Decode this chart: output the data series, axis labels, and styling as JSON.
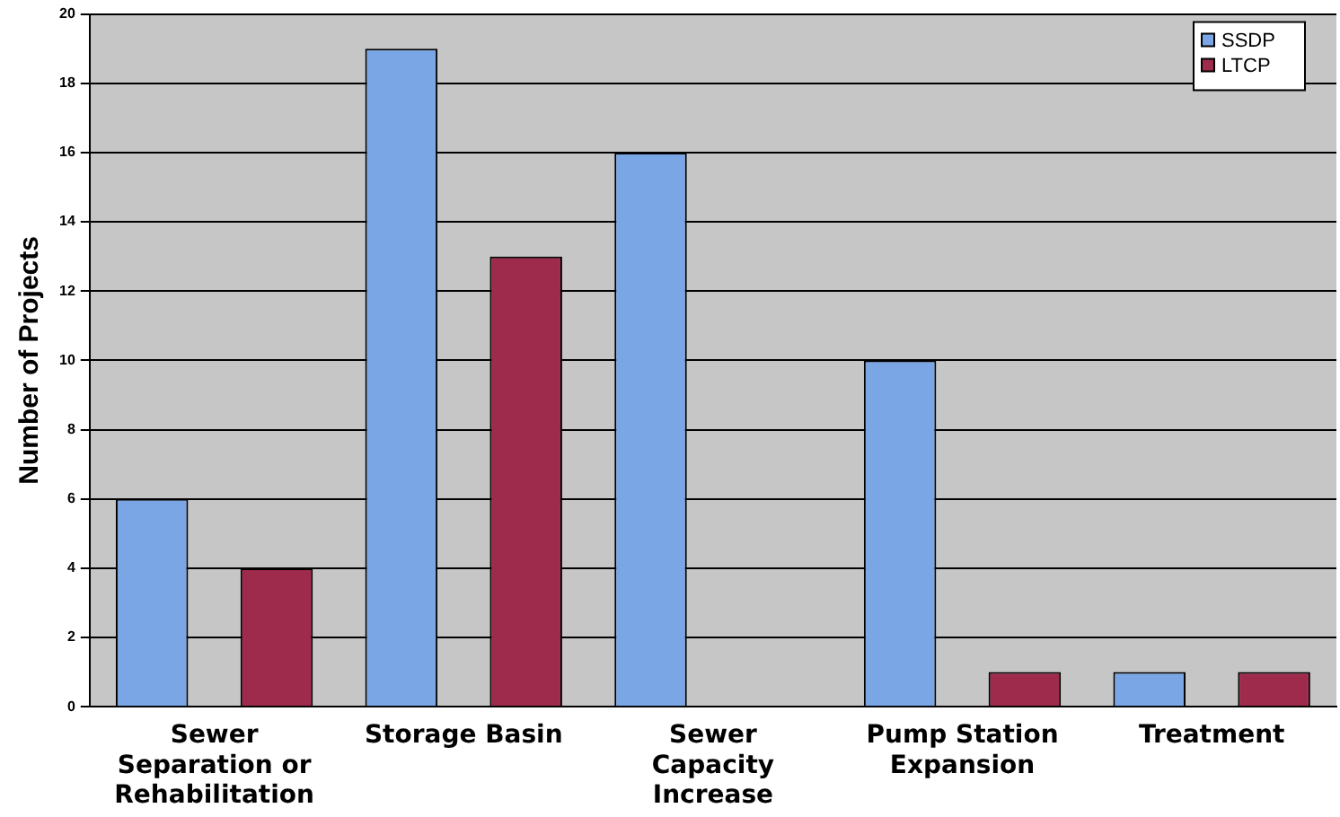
{
  "chart_data": {
    "type": "bar",
    "ylabel": "Number of Projects",
    "categories": [
      "Sewer Separation or Rehabilitation",
      "Storage Basin",
      "Sewer Capacity Increase",
      "Pump Station Expansion",
      "Treatment"
    ],
    "series": [
      {
        "name": "SSDP",
        "color": "#7aa6e6",
        "values": [
          6,
          19,
          16,
          10,
          1
        ]
      },
      {
        "name": "LTCP",
        "color": "#9e2a4c",
        "values": [
          4,
          13,
          0,
          1,
          1
        ]
      }
    ],
    "ylim": [
      0,
      20
    ],
    "yticks": [
      0,
      2,
      4,
      6,
      8,
      10,
      12,
      14,
      16,
      18,
      20
    ],
    "grid": "y",
    "legend": "top right"
  }
}
